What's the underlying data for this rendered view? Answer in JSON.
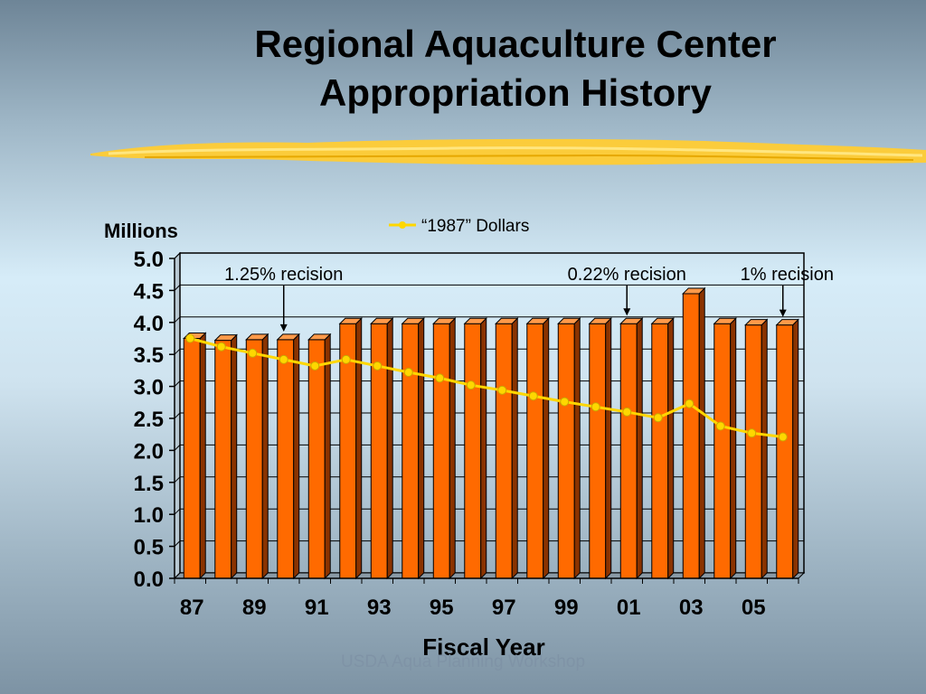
{
  "slide": {
    "title_line1": "Regional Aquaculture Center",
    "title_line2": "Appropriation History",
    "footer": "USDA Aqua Planning Workshop"
  },
  "colors": {
    "bar": "#ff6a00",
    "bar_side": "#8a3300",
    "bar_top": "#ff9a4a",
    "line": "#ffd700",
    "swash": "#ffcc33"
  },
  "chart_data": {
    "type": "bar",
    "ylabel": "Millions",
    "xlabel": "Fiscal Year",
    "ylim": [
      0,
      5.0
    ],
    "yticks": [
      "0.0",
      "0.5",
      "1.0",
      "1.5",
      "2.0",
      "2.5",
      "3.0",
      "3.5",
      "4.0",
      "4.5",
      "5.0"
    ],
    "x_tick_labels": [
      "87",
      "89",
      "91",
      "93",
      "95",
      "97",
      "99",
      "01",
      "03",
      "05"
    ],
    "categories": [
      "87",
      "88",
      "89",
      "90",
      "91",
      "92",
      "93",
      "94",
      "95",
      "96",
      "97",
      "98",
      "99",
      "00",
      "01",
      "02",
      "03",
      "04",
      "05",
      "06"
    ],
    "series": [
      {
        "type": "bar",
        "values": [
          3.75,
          3.72,
          3.73,
          3.73,
          3.73,
          3.98,
          3.98,
          3.98,
          3.98,
          3.98,
          3.98,
          3.98,
          3.98,
          3.98,
          3.98,
          3.98,
          4.45,
          3.98,
          3.96,
          3.96
        ]
      },
      {
        "name": "“1987” Dollars",
        "type": "line",
        "values": [
          3.75,
          3.62,
          3.52,
          3.42,
          3.32,
          3.42,
          3.32,
          3.22,
          3.13,
          3.02,
          2.94,
          2.85,
          2.76,
          2.68,
          2.6,
          2.51,
          2.73,
          2.38,
          2.27,
          2.21
        ]
      }
    ],
    "legend": {
      "label": "“1987” Dollars",
      "position": "top-center"
    },
    "grid": true,
    "annotations": [
      {
        "text": "1.25% recision",
        "category": "90"
      },
      {
        "text": "0.22% recision",
        "category": "01"
      },
      {
        "text": "1% recision",
        "category": "06"
      }
    ]
  }
}
